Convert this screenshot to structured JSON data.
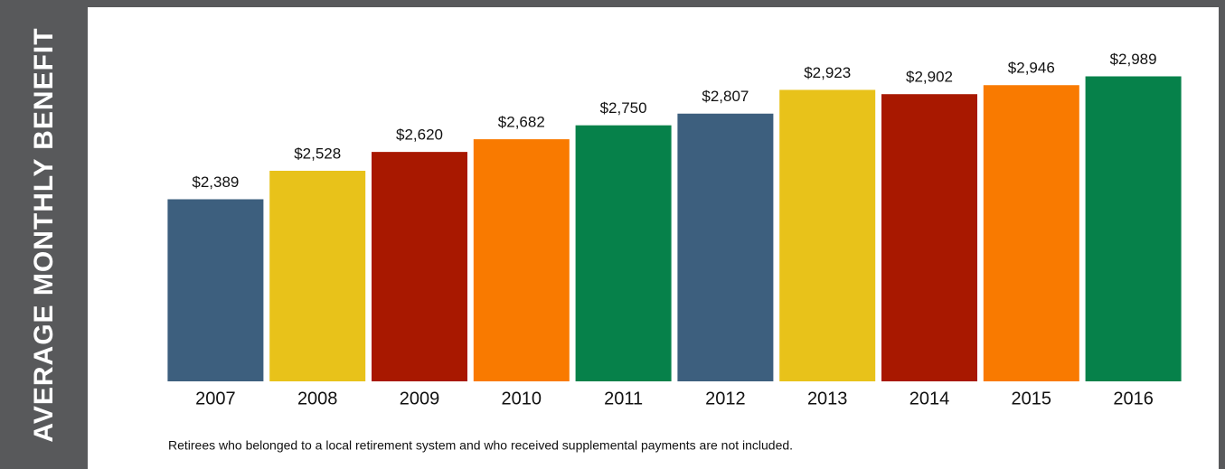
{
  "chart_data": {
    "type": "bar",
    "y_axis_label": "AVERAGE MONTHLY BENEFIT",
    "categories": [
      "2007",
      "2008",
      "2009",
      "2010",
      "2011",
      "2012",
      "2013",
      "2014",
      "2015",
      "2016"
    ],
    "values": [
      2389,
      2528,
      2620,
      2682,
      2750,
      2807,
      2923,
      2902,
      2946,
      2989
    ],
    "value_labels": [
      "$2,389",
      "$2,528",
      "$2,620",
      "$2,682",
      "$2,750",
      "$2,807",
      "$2,923",
      "$2,902",
      "$2,946",
      "$2,989"
    ],
    "colors": [
      "#3d5f7e",
      "#e8c21a",
      "#a81800",
      "#f97a00",
      "#06814a",
      "#3d5f7e",
      "#e8c21a",
      "#a81800",
      "#f97a00",
      "#06814a"
    ],
    "ylim": [
      1500,
      3000
    ],
    "note": "Retirees who belonged to a local retirement system and who received supplemental payments are not included."
  }
}
